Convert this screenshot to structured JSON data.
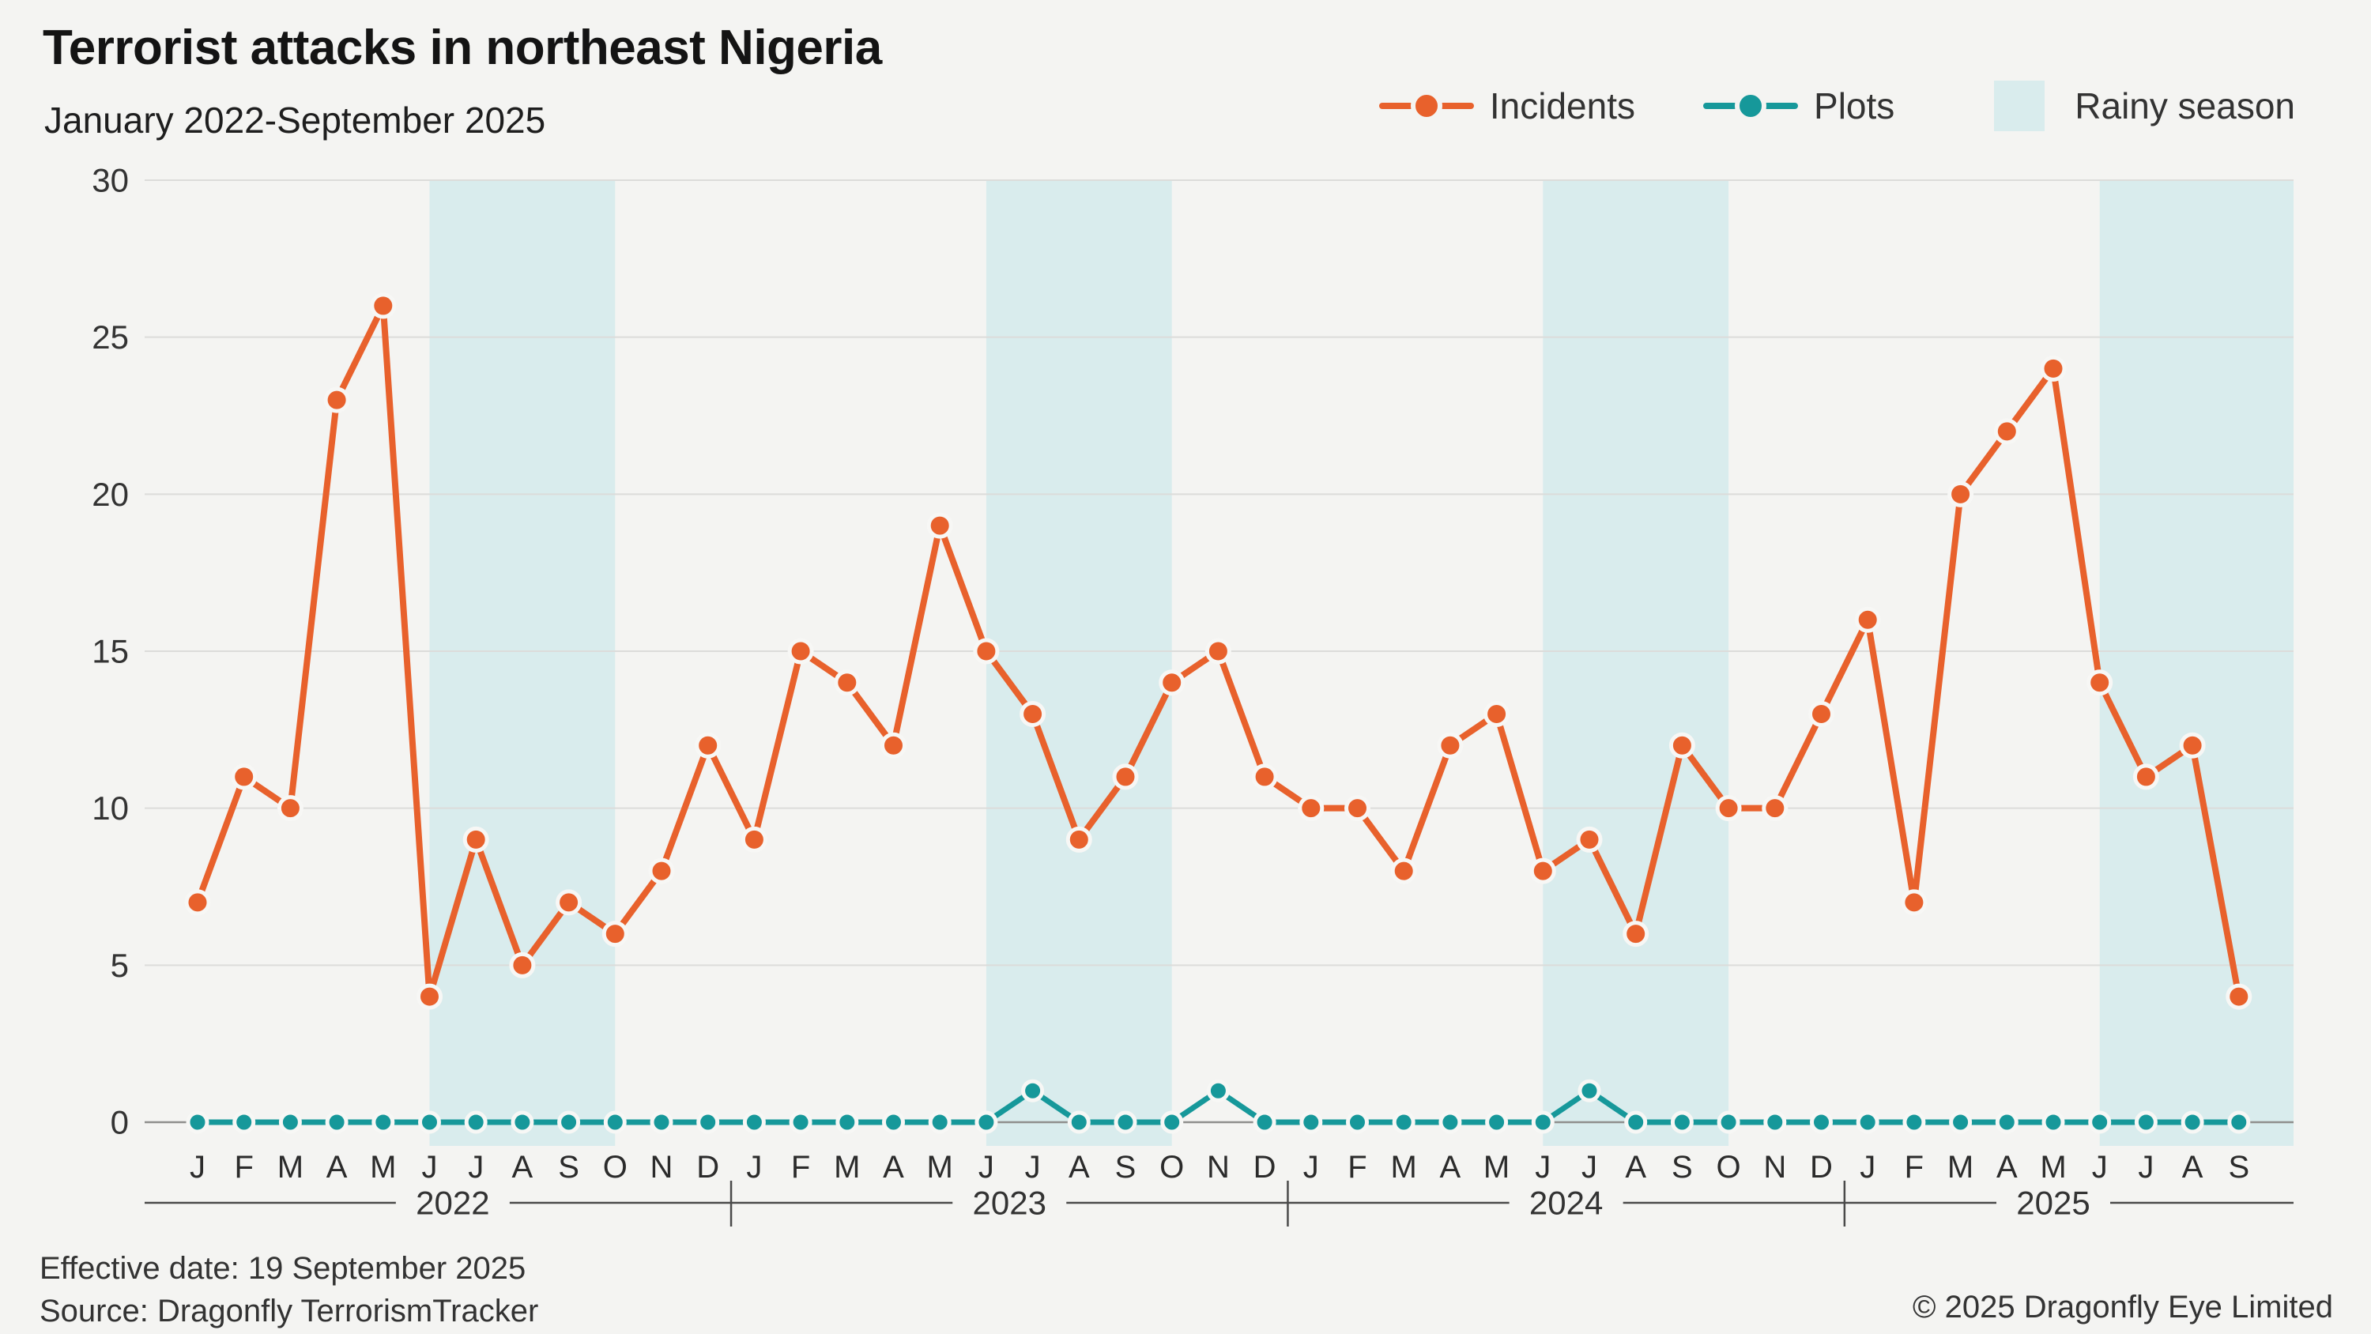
{
  "header": {
    "title": "Terrorist attacks in northeast Nigeria",
    "subtitle": "January 2022-September 2025"
  },
  "legend": [
    {
      "label": "Incidents",
      "color": "#e8612c",
      "marker": "line-dot"
    },
    {
      "label": "Plots",
      "color": "#16989a",
      "marker": "line-dot"
    },
    {
      "label": "Rainy season",
      "color": "#d9eced",
      "marker": "swatch"
    }
  ],
  "footer": {
    "effective_date": "Effective date: 19 September 2025",
    "source": "Source: Dragonfly TerrorismTracker",
    "copyright": "© 2025 Dragonfly Eye Limited"
  },
  "chart_data": {
    "type": "line",
    "title": "Terrorist attacks in northeast Nigeria",
    "subtitle": "January 2022-September 2025",
    "ylim": [
      0,
      30
    ],
    "yticks": [
      0,
      5,
      10,
      15,
      20,
      25,
      30
    ],
    "grid": true,
    "legend_position": "top-right",
    "categories": [
      "Jan 2022",
      "Feb 2022",
      "Mar 2022",
      "Apr 2022",
      "May 2022",
      "Jun 2022",
      "Jul 2022",
      "Aug 2022",
      "Sep 2022",
      "Oct 2022",
      "Nov 2022",
      "Dec 2022",
      "Jan 2023",
      "Feb 2023",
      "Mar 2023",
      "Apr 2023",
      "May 2023",
      "Jun 2023",
      "Jul 2023",
      "Aug 2023",
      "Sep 2023",
      "Oct 2023",
      "Nov 2023",
      "Dec 2023",
      "Jan 2024",
      "Feb 2024",
      "Mar 2024",
      "Apr 2024",
      "May 2024",
      "Jun 2024",
      "Jul 2024",
      "Aug 2024",
      "Sep 2024",
      "Oct 2024",
      "Nov 2024",
      "Dec 2024",
      "Jan 2025",
      "Feb 2025",
      "Mar 2025",
      "Apr 2025",
      "May 2025",
      "Jun 2025",
      "Jul 2025",
      "Aug 2025",
      "Sep 2025"
    ],
    "month_letters": [
      "J",
      "F",
      "M",
      "A",
      "M",
      "J",
      "J",
      "A",
      "S",
      "O",
      "N",
      "D",
      "J",
      "F",
      "M",
      "A",
      "M",
      "J",
      "J",
      "A",
      "S",
      "O",
      "N",
      "D",
      "J",
      "F",
      "M",
      "A",
      "M",
      "J",
      "J",
      "A",
      "S",
      "O",
      "N",
      "D",
      "J",
      "F",
      "M",
      "A",
      "M",
      "J",
      "J",
      "A",
      "S"
    ],
    "years": [
      {
        "label": "2022",
        "from_index": 0,
        "to_index": 11
      },
      {
        "label": "2023",
        "from_index": 12,
        "to_index": 23
      },
      {
        "label": "2024",
        "from_index": 24,
        "to_index": 35
      },
      {
        "label": "2025",
        "from_index": 36,
        "to_index": 44
      }
    ],
    "series": [
      {
        "name": "Incidents",
        "color": "#e8612c",
        "values": [
          7,
          11,
          10,
          23,
          26,
          4,
          9,
          5,
          7,
          6,
          8,
          12,
          9,
          15,
          14,
          12,
          19,
          15,
          13,
          9,
          11,
          14,
          15,
          11,
          10,
          10,
          8,
          12,
          13,
          8,
          9,
          6,
          12,
          10,
          10,
          13,
          16,
          7,
          20,
          22,
          24,
          14,
          11,
          12,
          4
        ]
      },
      {
        "name": "Plots",
        "color": "#16989a",
        "values": [
          0,
          0,
          0,
          0,
          0,
          0,
          0,
          0,
          0,
          0,
          0,
          0,
          0,
          0,
          0,
          0,
          0,
          0,
          1,
          0,
          0,
          0,
          1,
          0,
          0,
          0,
          0,
          0,
          0,
          0,
          1,
          0,
          0,
          0,
          0,
          0,
          0,
          0,
          0,
          0,
          0,
          0,
          0,
          0,
          0
        ]
      }
    ],
    "rainy_bands": {
      "label": "Rainy season",
      "color": "#d9eced",
      "ranges": [
        {
          "label": "Rainy season 2022",
          "from_index": 5,
          "to_index": 9
        },
        {
          "label": "Rainy season 2023",
          "from_index": 17,
          "to_index": 21
        },
        {
          "label": "Rainy season 2024",
          "from_index": 29,
          "to_index": 33
        },
        {
          "label": "Rainy season 2025",
          "from_index": 41,
          "to_index": null
        }
      ]
    },
    "style": {
      "background": "#f4f4f2",
      "gridline_color": "#dcdcda",
      "zero_line_color": "#8f8f8d",
      "axis_text_color": "#333333",
      "month_text_color": "#2b2b2b",
      "year_line_color": "#4a4a4a",
      "point_halo_color": "#f7f7f5"
    }
  }
}
